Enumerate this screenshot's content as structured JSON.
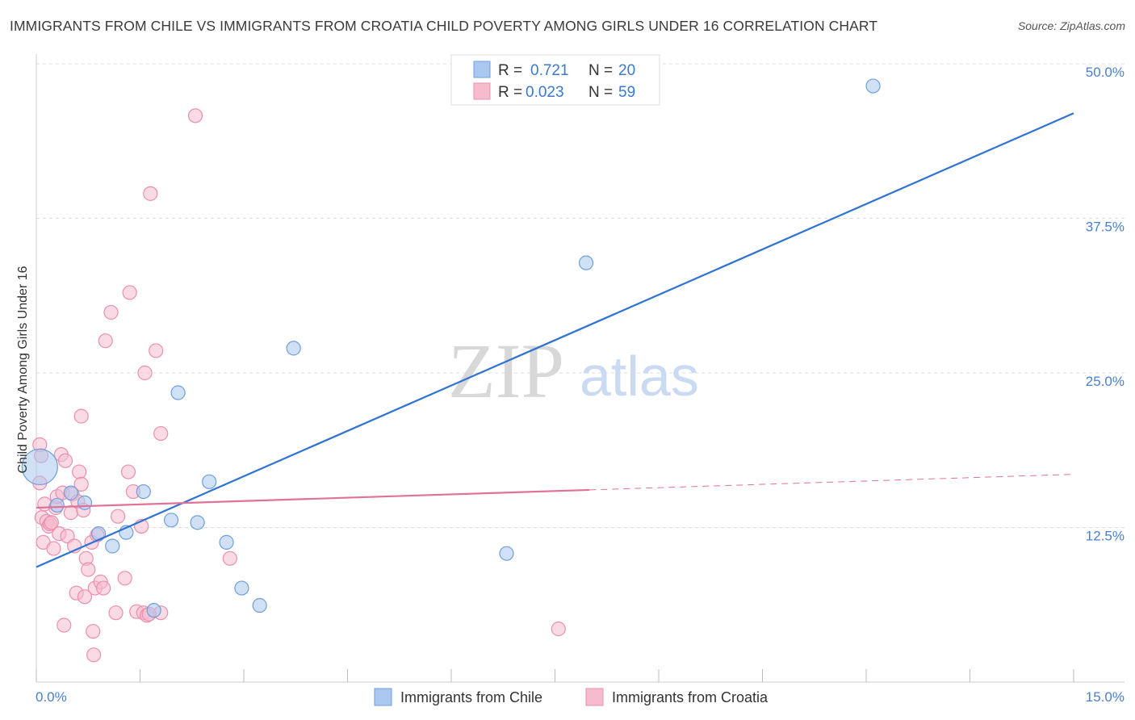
{
  "title": "IMMIGRANTS FROM CHILE VS IMMIGRANTS FROM CROATIA CHILD POVERTY AMONG GIRLS UNDER 16 CORRELATION CHART",
  "source": "Source: ZipAtlas.com",
  "watermark": {
    "zip": "ZIP",
    "atlas": "atlas"
  },
  "colors": {
    "chile_fill": "#aac8ef",
    "chile_stroke": "#6f9fdc",
    "chile_line": "#2e72d2",
    "croatia_fill": "#f6bccd",
    "croatia_stroke": "#eb8fae",
    "croatia_line": "#e2719a",
    "grid": "#dddddd",
    "tick_text": "#4a7fd0"
  },
  "legend": {
    "rows": [
      {
        "r_label": "R =",
        "r_value": "0.721",
        "n_label": "N =",
        "n_value": "20"
      },
      {
        "r_label": "R =",
        "r_value": "0.023",
        "n_label": "N =",
        "n_value": "59"
      }
    ]
  },
  "chart_data": {
    "type": "scatter",
    "title": "IMMIGRANTS FROM CHILE VS IMMIGRANTS FROM CROATIA CHILD POVERTY AMONG GIRLS UNDER 16 CORRELATION CHART",
    "xlabel": "",
    "ylabel": "Child Poverty Among Girls Under 16",
    "xlim": [
      0,
      15
    ],
    "ylim": [
      0,
      50
    ],
    "x_tick_labels": [
      "0.0%",
      "15.0%"
    ],
    "y_ticks": [
      12.5,
      25.0,
      37.5,
      50.0
    ],
    "y_tick_labels": [
      "12.5%",
      "25.0%",
      "37.5%",
      "50.0%"
    ],
    "grid": true,
    "legend_position": "top-center",
    "series": [
      {
        "name": "Immigrants from Chile",
        "R": 0.721,
        "N": 20,
        "trend": {
          "x": [
            0,
            15
          ],
          "y": [
            9.3,
            46.0
          ],
          "dashed_from": null
        },
        "points": [
          {
            "x": 0.05,
            "y": 17.4,
            "big": true
          },
          {
            "x": 0.3,
            "y": 14.3
          },
          {
            "x": 0.5,
            "y": 15.3
          },
          {
            "x": 0.7,
            "y": 14.5
          },
          {
            "x": 0.9,
            "y": 12.0
          },
          {
            "x": 1.1,
            "y": 11.0
          },
          {
            "x": 1.3,
            "y": 12.1
          },
          {
            "x": 1.55,
            "y": 15.4
          },
          {
            "x": 1.7,
            "y": 5.8
          },
          {
            "x": 1.95,
            "y": 13.1
          },
          {
            "x": 2.05,
            "y": 23.4
          },
          {
            "x": 2.33,
            "y": 12.9
          },
          {
            "x": 2.5,
            "y": 16.2
          },
          {
            "x": 2.75,
            "y": 11.3
          },
          {
            "x": 2.97,
            "y": 7.6
          },
          {
            "x": 3.23,
            "y": 6.2
          },
          {
            "x": 3.72,
            "y": 27.0
          },
          {
            "x": 6.8,
            "y": 10.4
          },
          {
            "x": 7.95,
            "y": 33.9
          },
          {
            "x": 12.1,
            "y": 48.2
          }
        ]
      },
      {
        "name": "Immigrants from Croatia",
        "R": 0.023,
        "N": 59,
        "trend": {
          "x": [
            0,
            15
          ],
          "y": [
            14.1,
            16.8
          ],
          "dashed_from": 8.0
        },
        "points": [
          {
            "x": 0.05,
            "y": 19.2
          },
          {
            "x": 0.05,
            "y": 16.1
          },
          {
            "x": 0.07,
            "y": 18.3
          },
          {
            "x": 0.08,
            "y": 13.3
          },
          {
            "x": 0.1,
            "y": 11.3
          },
          {
            "x": 0.12,
            "y": 14.4
          },
          {
            "x": 0.15,
            "y": 13.0
          },
          {
            "x": 0.18,
            "y": 12.6
          },
          {
            "x": 0.2,
            "y": 12.8
          },
          {
            "x": 0.22,
            "y": 12.9
          },
          {
            "x": 0.25,
            "y": 10.8
          },
          {
            "x": 0.28,
            "y": 14.1
          },
          {
            "x": 0.3,
            "y": 15.0
          },
          {
            "x": 0.33,
            "y": 12.0
          },
          {
            "x": 0.36,
            "y": 18.4
          },
          {
            "x": 0.38,
            "y": 15.3
          },
          {
            "x": 0.42,
            "y": 17.9
          },
          {
            "x": 0.45,
            "y": 11.8
          },
          {
            "x": 0.4,
            "y": 4.6
          },
          {
            "x": 0.5,
            "y": 13.7
          },
          {
            "x": 0.52,
            "y": 15.2
          },
          {
            "x": 0.55,
            "y": 11.0
          },
          {
            "x": 0.58,
            "y": 7.2
          },
          {
            "x": 0.6,
            "y": 14.6
          },
          {
            "x": 0.62,
            "y": 17.0
          },
          {
            "x": 0.65,
            "y": 21.5
          },
          {
            "x": 0.65,
            "y": 16.0
          },
          {
            "x": 0.68,
            "y": 13.9
          },
          {
            "x": 0.7,
            "y": 6.9
          },
          {
            "x": 0.72,
            "y": 10.0
          },
          {
            "x": 0.75,
            "y": 9.1
          },
          {
            "x": 0.8,
            "y": 11.3
          },
          {
            "x": 0.82,
            "y": 4.1
          },
          {
            "x": 0.83,
            "y": 2.2
          },
          {
            "x": 0.85,
            "y": 7.6
          },
          {
            "x": 0.88,
            "y": 11.9
          },
          {
            "x": 0.93,
            "y": 8.1
          },
          {
            "x": 0.97,
            "y": 7.6
          },
          {
            "x": 1.0,
            "y": 27.6
          },
          {
            "x": 1.08,
            "y": 29.9
          },
          {
            "x": 1.15,
            "y": 5.6
          },
          {
            "x": 1.18,
            "y": 13.4
          },
          {
            "x": 1.28,
            "y": 8.4
          },
          {
            "x": 1.33,
            "y": 17.0
          },
          {
            "x": 1.35,
            "y": 31.5
          },
          {
            "x": 1.4,
            "y": 15.4
          },
          {
            "x": 1.45,
            "y": 5.7
          },
          {
            "x": 1.55,
            "y": 5.6
          },
          {
            "x": 1.6,
            "y": 5.4
          },
          {
            "x": 1.52,
            "y": 12.6
          },
          {
            "x": 1.57,
            "y": 25.0
          },
          {
            "x": 1.65,
            "y": 39.5
          },
          {
            "x": 1.73,
            "y": 26.8
          },
          {
            "x": 1.8,
            "y": 5.6
          },
          {
            "x": 1.8,
            "y": 20.1
          },
          {
            "x": 2.3,
            "y": 45.8
          },
          {
            "x": 2.8,
            "y": 10.0
          },
          {
            "x": 7.55,
            "y": 4.3
          },
          {
            "x": 1.63,
            "y": 5.5
          }
        ]
      }
    ]
  },
  "bottom_legend": [
    {
      "label": "Immigrants from Chile"
    },
    {
      "label": "Immigrants from Croatia"
    }
  ]
}
